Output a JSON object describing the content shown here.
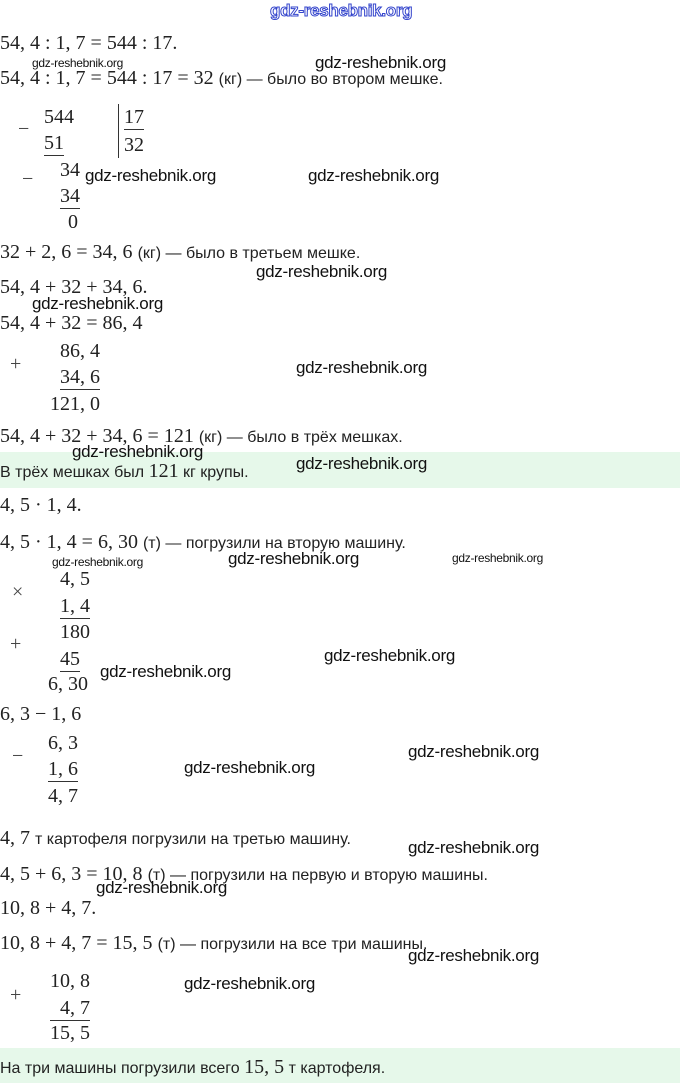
{
  "header_watermark": "gdz-reshebnik.org",
  "watermark_text": "gdz-reshebnik.org",
  "highlight_color": "#e6f8ea",
  "lines": [
    [
      {
        "math": "54, 4 : 1, 7 = 544 : 17."
      }
    ],
    [
      {
        "math": "54, 4 : 1, 7 = 544 : 17 = 32 "
      },
      {
        "text": "(кг) — было во втором мешке."
      }
    ],
    [
      {
        "math": "32 + 2, 6 = 34, 6 "
      },
      {
        "text": "(кг) — было в третьем мешке."
      }
    ],
    [
      {
        "math": "54, 4 + 32 + 34, 6."
      }
    ],
    [
      {
        "math": "54, 4 + 32 = 86, 4"
      }
    ],
    [
      {
        "math": "54, 4 + 32 + 34, 6 = 121 "
      },
      {
        "text": "(кг) — было в трёх мешках."
      }
    ],
    [
      {
        "text": "В трёх мешках был "
      },
      {
        "math": "121"
      },
      {
        "text": " кг крупы."
      }
    ],
    [
      {
        "math": "4, 5 · 1, 4."
      }
    ],
    [
      {
        "math": "4, 5 · 1, 4 = 6, 30 "
      },
      {
        "text": "(т) — погрузили на вторую машину."
      }
    ],
    [
      {
        "math": "6, 3 − 1, 6"
      }
    ],
    [
      {
        "math": "4, 7 "
      },
      {
        "text": "т картофеля погрузили на третью машину."
      }
    ],
    [
      {
        "math": "4, 5 + 6, 3 = 10, 8 "
      },
      {
        "text": "(т) — погрузили на первую и вторую машины."
      }
    ],
    [
      {
        "math": "10, 8 + 4, 7."
      }
    ],
    [
      {
        "math": "10, 8 + 4, 7 = 15, 5 "
      },
      {
        "text": "(т) — погрузили на все три машины."
      }
    ],
    [
      {
        "text": "На три машины погрузили всего "
      },
      {
        "math": "15, 5"
      },
      {
        "text": " т картофеля."
      }
    ]
  ],
  "columns": {
    "division": {
      "op": "−",
      "dividend": "544",
      "sub1": "51",
      "divisor": "17",
      "quotient": "32",
      "op2": "−",
      "rem1": "34",
      "sub2": "34",
      "rem2": "0"
    },
    "addition1": {
      "op": "+",
      "a": "86, 4",
      "b": "34, 6",
      "sum": "121, 0"
    },
    "multiplication": {
      "op": "×",
      "a": "4, 5",
      "b": "1, 4",
      "p1": "180",
      "op2": "+",
      "p2": "45",
      "result": "6, 30"
    },
    "subtraction": {
      "op": "−",
      "a": "6, 3",
      "b": "1, 6",
      "diff": "4, 7"
    },
    "addition2": {
      "op": "+",
      "a": "10, 8",
      "b": "4, 7",
      "sum": "15, 5"
    }
  }
}
